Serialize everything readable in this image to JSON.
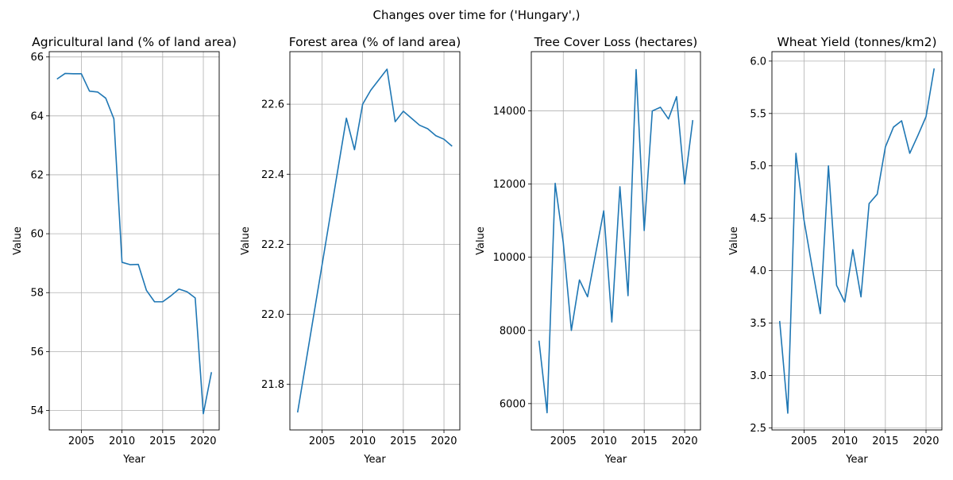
{
  "figure": {
    "suptitle": "Changes over time for ('Hungary',)"
  },
  "chart_data": [
    {
      "type": "line",
      "title": "Agricultural land (% of land area)",
      "xlabel": "Year",
      "ylabel": "Value",
      "xlim": [
        2001.05,
        2021.95
      ],
      "ylim": [
        53.34,
        66.18
      ],
      "xticks": [
        2005,
        2010,
        2015,
        2020
      ],
      "yticks": [
        54,
        56,
        58,
        60,
        62,
        64,
        66
      ],
      "grid": true,
      "line_color": "#1f77b4",
      "x": [
        2002,
        2003,
        2004,
        2005,
        2006,
        2007,
        2008,
        2009,
        2010,
        2011,
        2012,
        2013,
        2014,
        2015,
        2016,
        2017,
        2018,
        2019,
        2020,
        2021
      ],
      "values": [
        65.25,
        65.44,
        65.43,
        65.43,
        64.84,
        64.81,
        64.6,
        63.9,
        59.03,
        58.95,
        58.96,
        58.08,
        57.69,
        57.69,
        57.89,
        58.12,
        58.03,
        57.82,
        53.89,
        55.3
      ]
    },
    {
      "type": "line",
      "title": "Forest area (% of land area)",
      "xlabel": "Year",
      "ylabel": "Value",
      "xlim": [
        2001.05,
        2021.95
      ],
      "ylim": [
        21.67,
        22.75
      ],
      "xticks": [
        2005,
        2010,
        2015,
        2020
      ],
      "yticks": [
        21.8,
        22.0,
        22.2,
        22.4,
        22.6
      ],
      "grid": true,
      "line_color": "#1f77b4",
      "x": [
        2002,
        2003,
        2004,
        2005,
        2006,
        2007,
        2008,
        2009,
        2010,
        2011,
        2012,
        2013,
        2014,
        2015,
        2016,
        2017,
        2018,
        2019,
        2020,
        2021
      ],
      "values": [
        21.72,
        21.86,
        22.0,
        22.14,
        22.28,
        22.42,
        22.56,
        22.47,
        22.6,
        22.64,
        22.67,
        22.7,
        22.55,
        22.58,
        22.56,
        22.54,
        22.53,
        22.51,
        22.5,
        22.48
      ]
    },
    {
      "type": "line",
      "title": "Tree Cover Loss (hectares)",
      "xlabel": "Year",
      "ylabel": "Value",
      "xlim": [
        2001.05,
        2021.95
      ],
      "ylim": [
        5280,
        15620
      ],
      "xticks": [
        2005,
        2010,
        2015,
        2020
      ],
      "yticks": [
        6000,
        8000,
        10000,
        12000,
        14000
      ],
      "grid": true,
      "line_color": "#1f77b4",
      "x": [
        2002,
        2003,
        2004,
        2005,
        2006,
        2007,
        2008,
        2009,
        2010,
        2011,
        2012,
        2013,
        2014,
        2015,
        2016,
        2017,
        2018,
        2019,
        2020,
        2021
      ],
      "values": [
        7720,
        5750,
        12020,
        10400,
        8000,
        9380,
        8920,
        10100,
        11270,
        8230,
        11930,
        8950,
        15130,
        10730,
        14000,
        14100,
        13780,
        14390,
        12000,
        13750
      ]
    },
    {
      "type": "line",
      "title": "Wheat Yield (tonnes/km2)",
      "xlabel": "Year",
      "ylabel": "Value",
      "xlim": [
        2001.05,
        2021.95
      ],
      "ylim": [
        2.48,
        6.09
      ],
      "xticks": [
        2005,
        2010,
        2015,
        2020
      ],
      "yticks": [
        2.5,
        3.0,
        3.5,
        4.0,
        4.5,
        5.0,
        5.5,
        6.0
      ],
      "grid": true,
      "line_color": "#1f77b4",
      "x": [
        2002,
        2003,
        2004,
        2005,
        2006,
        2007,
        2008,
        2009,
        2010,
        2011,
        2012,
        2013,
        2014,
        2015,
        2016,
        2017,
        2018,
        2019,
        2020,
        2021
      ],
      "values": [
        3.52,
        2.64,
        5.12,
        4.48,
        4.03,
        3.59,
        5.0,
        3.86,
        3.7,
        4.2,
        3.75,
        4.64,
        4.73,
        5.18,
        5.37,
        5.43,
        5.12,
        5.29,
        5.47,
        5.93
      ]
    }
  ]
}
